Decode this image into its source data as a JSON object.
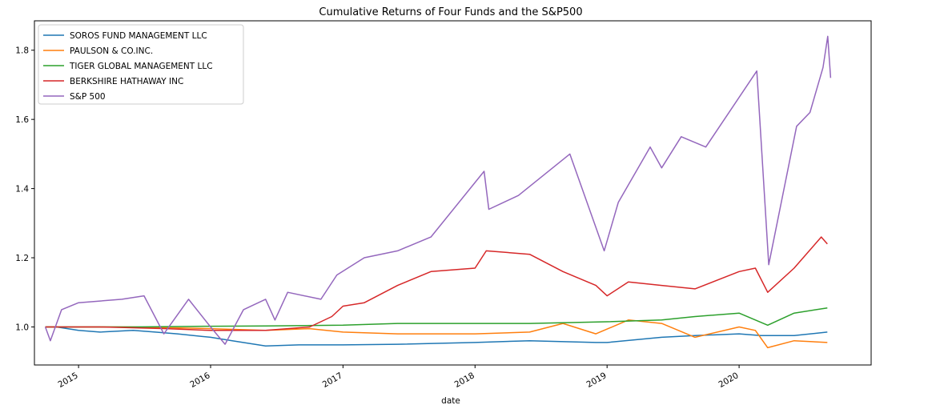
{
  "chart_data": {
    "type": "line",
    "title": "Cumulative Returns of Four Funds and the S&P500",
    "xlabel": "date",
    "ylabel": "",
    "x_range": [
      "2014-09-01",
      "2020-12-31"
    ],
    "x_ticks": [
      "2015",
      "2016",
      "2017",
      "2018",
      "2019",
      "2020"
    ],
    "ylim": [
      0.89,
      1.885
    ],
    "y_ticks": [
      "1.0",
      "1.2",
      "1.4",
      "1.6",
      "1.8"
    ],
    "grid": false,
    "legend_position": "upper-left",
    "series": [
      {
        "name": "SOROS FUND MANAGEMENT LLC",
        "color": "#1f77b4",
        "points": [
          [
            "2014-10-01",
            1.0
          ],
          [
            "2014-11-01",
            1.0
          ],
          [
            "2015-01-01",
            0.99
          ],
          [
            "2015-03-01",
            0.985
          ],
          [
            "2015-06-01",
            0.99
          ],
          [
            "2015-08-01",
            0.985
          ],
          [
            "2015-10-01",
            0.98
          ],
          [
            "2016-01-01",
            0.97
          ],
          [
            "2016-03-01",
            0.96
          ],
          [
            "2016-06-01",
            0.945
          ],
          [
            "2016-09-01",
            0.948
          ],
          [
            "2017-01-01",
            0.948
          ],
          [
            "2017-06-01",
            0.95
          ],
          [
            "2018-01-01",
            0.955
          ],
          [
            "2018-06-01",
            0.96
          ],
          [
            "2018-12-01",
            0.955
          ],
          [
            "2019-01-01",
            0.955
          ],
          [
            "2019-06-01",
            0.97
          ],
          [
            "2019-09-01",
            0.975
          ],
          [
            "2020-01-01",
            0.98
          ],
          [
            "2020-03-01",
            0.975
          ],
          [
            "2020-06-01",
            0.975
          ],
          [
            "2020-09-01",
            0.985
          ]
        ]
      },
      {
        "name": "PAULSON & CO.INC.",
        "color": "#ff7f0e",
        "points": [
          [
            "2014-10-01",
            1.0
          ],
          [
            "2015-01-01",
            1.0
          ],
          [
            "2015-06-01",
            1.0
          ],
          [
            "2016-01-01",
            0.995
          ],
          [
            "2016-06-01",
            0.99
          ],
          [
            "2016-10-01",
            0.995
          ],
          [
            "2017-01-01",
            0.985
          ],
          [
            "2017-06-01",
            0.98
          ],
          [
            "2018-01-01",
            0.98
          ],
          [
            "2018-06-01",
            0.985
          ],
          [
            "2018-09-01",
            1.01
          ],
          [
            "2018-12-01",
            0.98
          ],
          [
            "2019-03-01",
            1.02
          ],
          [
            "2019-06-01",
            1.01
          ],
          [
            "2019-09-01",
            0.97
          ],
          [
            "2020-01-01",
            1.0
          ],
          [
            "2020-02-15",
            0.99
          ],
          [
            "2020-03-20",
            0.94
          ],
          [
            "2020-06-01",
            0.96
          ],
          [
            "2020-09-01",
            0.955
          ]
        ]
      },
      {
        "name": "TIGER GLOBAL MANAGEMENT LLC",
        "color": "#2ca02c",
        "points": [
          [
            "2014-10-01",
            1.0
          ],
          [
            "2015-06-01",
            1.0
          ],
          [
            "2016-01-01",
            1.002
          ],
          [
            "2016-06-01",
            1.003
          ],
          [
            "2017-01-01",
            1.005
          ],
          [
            "2017-06-01",
            1.01
          ],
          [
            "2018-01-01",
            1.01
          ],
          [
            "2018-06-01",
            1.01
          ],
          [
            "2019-01-01",
            1.015
          ],
          [
            "2019-06-01",
            1.02
          ],
          [
            "2019-09-01",
            1.03
          ],
          [
            "2020-01-01",
            1.04
          ],
          [
            "2020-03-20",
            1.005
          ],
          [
            "2020-06-01",
            1.04
          ],
          [
            "2020-09-01",
            1.055
          ]
        ]
      },
      {
        "name": "BERKSHIRE HATHAWAY INC",
        "color": "#d62728",
        "points": [
          [
            "2014-10-01",
            1.0
          ],
          [
            "2015-03-01",
            1.0
          ],
          [
            "2015-09-01",
            0.995
          ],
          [
            "2016-01-01",
            0.99
          ],
          [
            "2016-06-01",
            0.99
          ],
          [
            "2016-10-01",
            1.0
          ],
          [
            "2016-12-01",
            1.03
          ],
          [
            "2017-01-01",
            1.06
          ],
          [
            "2017-03-01",
            1.07
          ],
          [
            "2017-06-01",
            1.12
          ],
          [
            "2017-09-01",
            1.16
          ],
          [
            "2018-01-01",
            1.17
          ],
          [
            "2018-02-01",
            1.22
          ],
          [
            "2018-06-01",
            1.21
          ],
          [
            "2018-09-01",
            1.16
          ],
          [
            "2018-12-01",
            1.12
          ],
          [
            "2019-01-01",
            1.09
          ],
          [
            "2019-03-01",
            1.13
          ],
          [
            "2019-06-01",
            1.12
          ],
          [
            "2019-09-01",
            1.11
          ],
          [
            "2020-01-01",
            1.16
          ],
          [
            "2020-02-15",
            1.17
          ],
          [
            "2020-03-20",
            1.1
          ],
          [
            "2020-06-01",
            1.17
          ],
          [
            "2020-08-15",
            1.26
          ],
          [
            "2020-09-01",
            1.24
          ]
        ]
      },
      {
        "name": "S&P 500",
        "color": "#9467bd",
        "points": [
          [
            "2014-10-01",
            1.0
          ],
          [
            "2014-10-15",
            0.96
          ],
          [
            "2014-11-15",
            1.05
          ],
          [
            "2015-01-01",
            1.07
          ],
          [
            "2015-05-01",
            1.08
          ],
          [
            "2015-07-01",
            1.09
          ],
          [
            "2015-08-25",
            0.98
          ],
          [
            "2015-11-01",
            1.08
          ],
          [
            "2016-01-01",
            1.0
          ],
          [
            "2016-02-10",
            0.95
          ],
          [
            "2016-04-01",
            1.05
          ],
          [
            "2016-06-01",
            1.08
          ],
          [
            "2016-06-27",
            1.02
          ],
          [
            "2016-08-01",
            1.1
          ],
          [
            "2016-11-01",
            1.08
          ],
          [
            "2016-12-15",
            1.15
          ],
          [
            "2017-03-01",
            1.2
          ],
          [
            "2017-06-01",
            1.22
          ],
          [
            "2017-09-01",
            1.26
          ],
          [
            "2018-01-26",
            1.45
          ],
          [
            "2018-02-08",
            1.34
          ],
          [
            "2018-05-01",
            1.38
          ],
          [
            "2018-09-20",
            1.5
          ],
          [
            "2018-12-24",
            1.22
          ],
          [
            "2019-02-01",
            1.36
          ],
          [
            "2019-04-30",
            1.52
          ],
          [
            "2019-06-01",
            1.46
          ],
          [
            "2019-07-25",
            1.55
          ],
          [
            "2019-10-01",
            1.52
          ],
          [
            "2020-02-19",
            1.74
          ],
          [
            "2020-03-23",
            1.18
          ],
          [
            "2020-06-08",
            1.58
          ],
          [
            "2020-07-15",
            1.62
          ],
          [
            "2020-08-20",
            1.75
          ],
          [
            "2020-09-02",
            1.84
          ],
          [
            "2020-09-10",
            1.72
          ]
        ]
      }
    ]
  }
}
